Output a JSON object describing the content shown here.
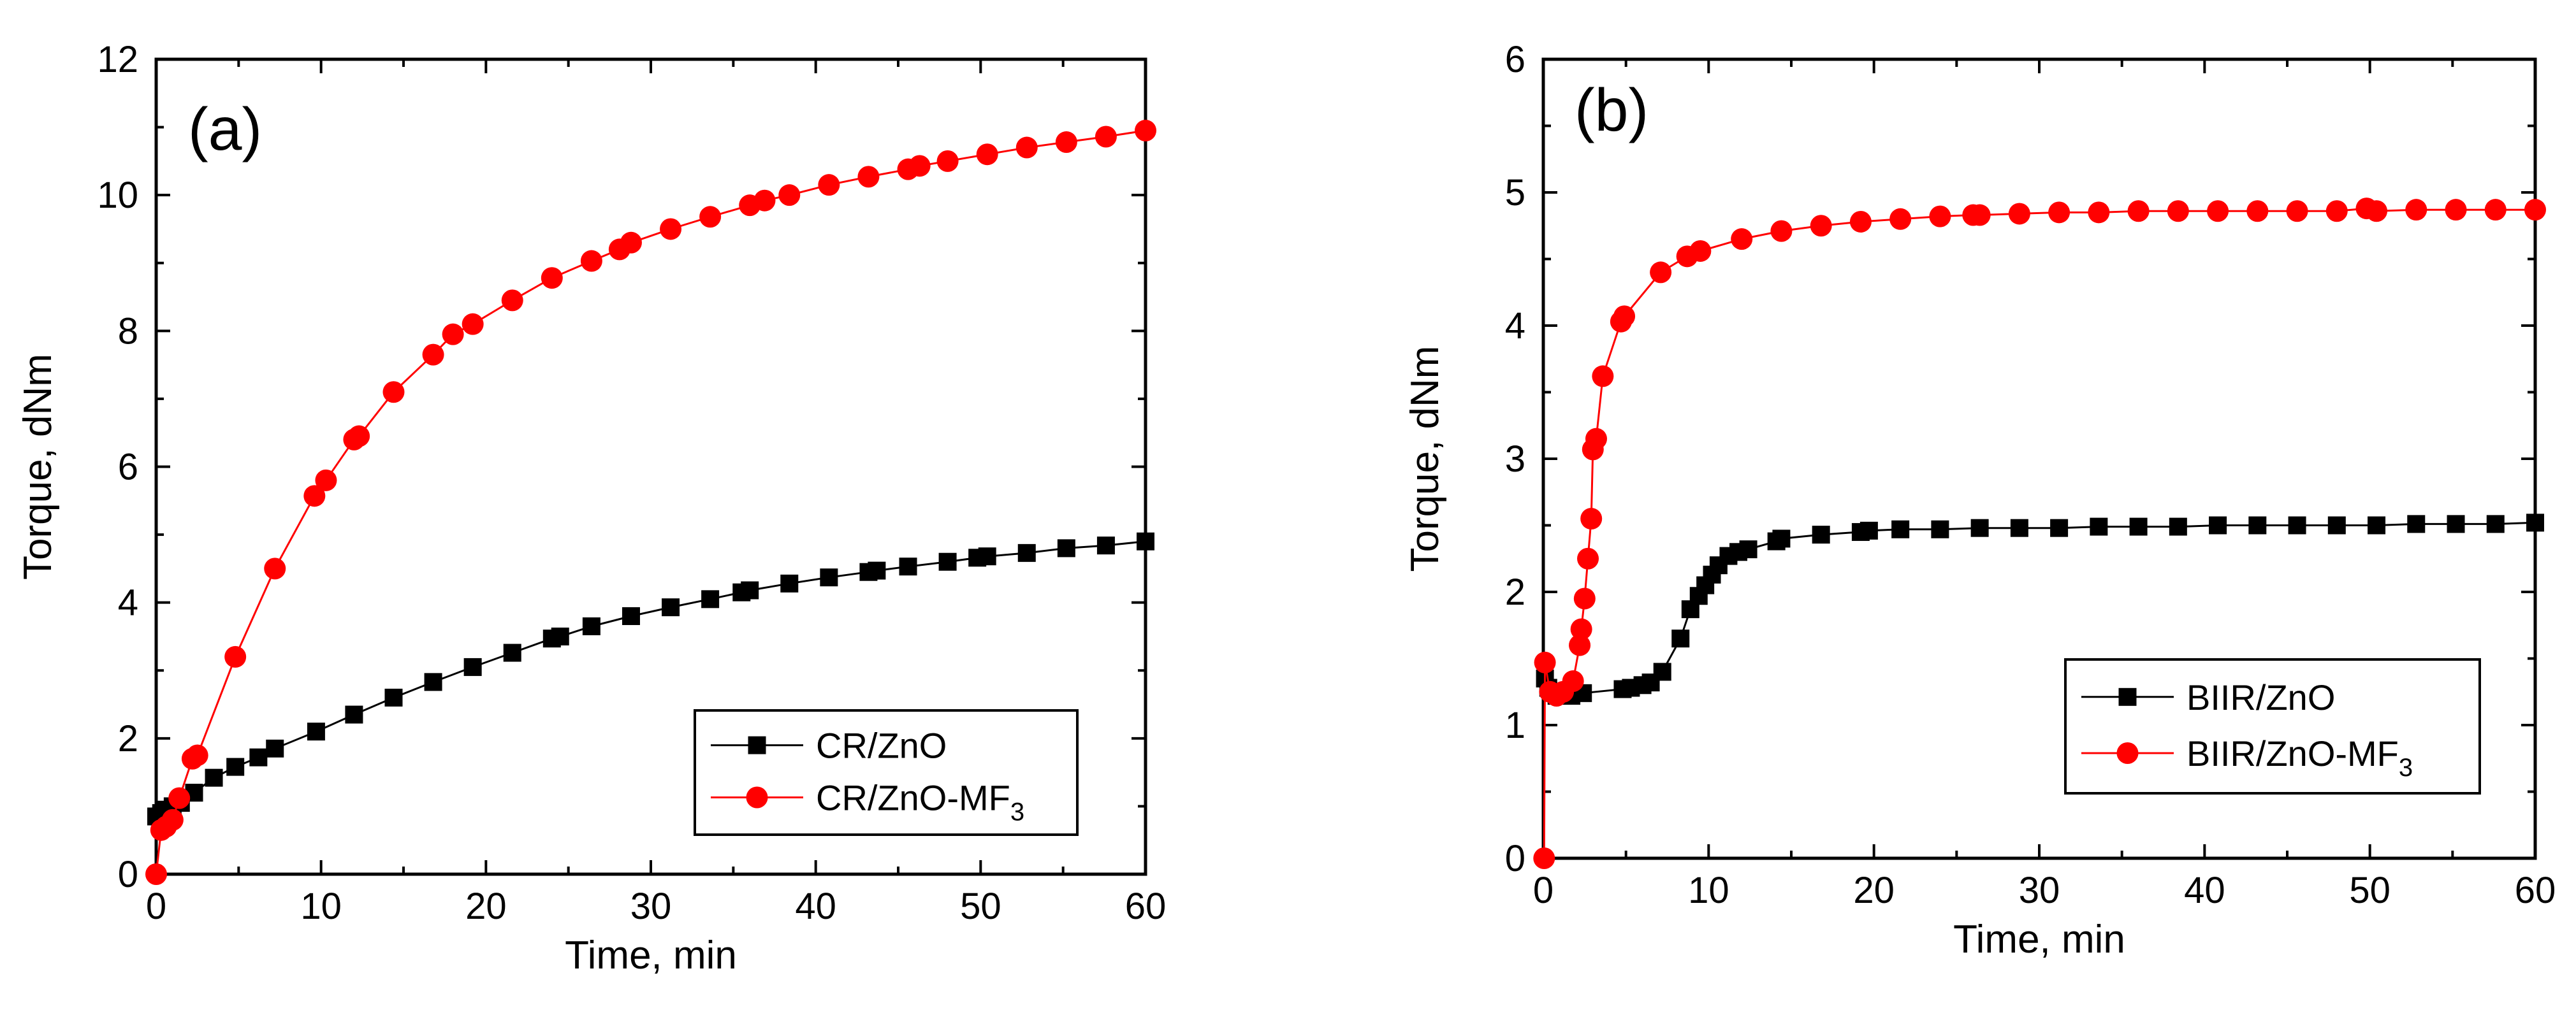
{
  "colors": {
    "black_series": "#000000",
    "red_series": "#ff0000",
    "axis": "#000000"
  },
  "chart_data": [
    {
      "panel_label": "(a)",
      "type": "line",
      "xlabel": "Time, min",
      "ylabel": "Torque, dNm",
      "xlim": [
        0,
        60
      ],
      "ylim": [
        0,
        12
      ],
      "xticks": [
        "0",
        "10",
        "20",
        "30",
        "40",
        "50",
        "60"
      ],
      "yticks": [
        "0",
        "2",
        "4",
        "6",
        "8",
        "10",
        "12"
      ],
      "legend_position": "bottom-right",
      "series": [
        {
          "name": "CR/ZnO",
          "marker": "square",
          "color": "#000000",
          "x": [
            0,
            0.3,
            0.6,
            1.0,
            1.5,
            2.3,
            3.5,
            4.8,
            6.2,
            7.2,
            9.7,
            12.0,
            14.4,
            16.8,
            19.2,
            21.6,
            24.0,
            24.5,
            26.4,
            28.8,
            31.2,
            33.6,
            35.5,
            36.0,
            38.4,
            40.8,
            43.2,
            43.7,
            45.6,
            48.0,
            49.8,
            50.4,
            52.8,
            55.2,
            57.6,
            60.0
          ],
          "y": [
            0.85,
            0.9,
            0.95,
            1.0,
            1.05,
            1.2,
            1.42,
            1.58,
            1.72,
            1.85,
            2.1,
            2.35,
            2.6,
            2.83,
            3.05,
            3.26,
            3.47,
            3.5,
            3.65,
            3.8,
            3.93,
            4.05,
            4.15,
            4.18,
            4.28,
            4.37,
            4.45,
            4.47,
            4.53,
            4.6,
            4.66,
            4.68,
            4.73,
            4.8,
            4.84,
            4.9
          ]
        },
        {
          "name": "CR/ZnO-MF3",
          "legend_base": "CR/ZnO-MF",
          "legend_subscript": "3",
          "marker": "circle",
          "color": "#ff0000",
          "x": [
            0,
            0.3,
            0.6,
            1.0,
            1.4,
            2.2,
            2.5,
            4.8,
            7.2,
            9.6,
            10.3,
            12.0,
            12.3,
            14.4,
            16.8,
            18.0,
            19.2,
            21.6,
            24.0,
            26.4,
            28.1,
            28.8,
            31.2,
            33.6,
            36.0,
            36.9,
            38.4,
            40.8,
            43.2,
            45.6,
            46.3,
            48.0,
            50.4,
            52.8,
            55.2,
            57.6,
            60.0
          ],
          "y": [
            0.0,
            0.65,
            0.7,
            0.8,
            1.12,
            1.7,
            1.75,
            3.2,
            4.5,
            5.57,
            5.8,
            6.4,
            6.45,
            7.1,
            7.65,
            7.95,
            8.1,
            8.45,
            8.78,
            9.03,
            9.2,
            9.3,
            9.5,
            9.68,
            9.85,
            9.92,
            10.0,
            10.15,
            10.27,
            10.38,
            10.43,
            10.5,
            10.6,
            10.7,
            10.78,
            10.86,
            10.95
          ]
        }
      ]
    },
    {
      "panel_label": "(b)",
      "type": "line",
      "xlabel": "Time, min",
      "ylabel": "Torque, dNm",
      "xlim": [
        0,
        60
      ],
      "ylim": [
        0,
        6
      ],
      "xticks": [
        "0",
        "10",
        "20",
        "30",
        "40",
        "50",
        "60"
      ],
      "yticks": [
        "0",
        "1",
        "2",
        "3",
        "4",
        "5",
        "6"
      ],
      "legend_position": "right-middle",
      "series": [
        {
          "name": "BIIR/ZnO",
          "marker": "square",
          "color": "#000000",
          "x": [
            0.1,
            0.3,
            0.5,
            0.8,
            1.2,
            1.7,
            2.4,
            4.8,
            5.3,
            6.0,
            6.5,
            7.2,
            8.3,
            8.9,
            9.4,
            9.8,
            10.2,
            10.6,
            11.2,
            11.8,
            12.4,
            14.1,
            14.4,
            16.8,
            19.2,
            19.7,
            21.6,
            24.0,
            26.4,
            28.8,
            31.2,
            33.6,
            36.0,
            38.4,
            40.8,
            43.2,
            45.6,
            48.0,
            50.4,
            52.8,
            55.2,
            57.6,
            60.0
          ],
          "y": [
            1.35,
            1.28,
            1.25,
            1.22,
            1.22,
            1.22,
            1.24,
            1.27,
            1.28,
            1.3,
            1.32,
            1.4,
            1.65,
            1.87,
            1.97,
            2.05,
            2.13,
            2.2,
            2.27,
            2.3,
            2.32,
            2.38,
            2.4,
            2.43,
            2.45,
            2.46,
            2.47,
            2.47,
            2.48,
            2.48,
            2.48,
            2.49,
            2.49,
            2.49,
            2.5,
            2.5,
            2.5,
            2.5,
            2.5,
            2.51,
            2.51,
            2.51,
            2.52
          ]
        },
        {
          "name": "BIIR/ZnO-MF3",
          "legend_base": "BIIR/ZnO-MF",
          "legend_subscript": "3",
          "marker": "circle",
          "color": "#ff0000",
          "x": [
            0.05,
            0.1,
            0.4,
            0.8,
            1.2,
            1.8,
            2.2,
            2.3,
            2.5,
            2.7,
            2.9,
            3.0,
            3.2,
            3.6,
            4.7,
            4.9,
            7.1,
            8.7,
            9.5,
            12.0,
            14.4,
            16.8,
            19.2,
            21.6,
            24.0,
            26.0,
            26.4,
            28.8,
            31.2,
            33.6,
            36.0,
            38.4,
            40.8,
            43.2,
            45.6,
            48.0,
            49.8,
            50.4,
            52.8,
            55.2,
            57.6,
            60.0
          ],
          "y": [
            0.0,
            1.47,
            1.25,
            1.22,
            1.25,
            1.33,
            1.6,
            1.72,
            1.95,
            2.25,
            2.55,
            3.07,
            3.15,
            3.62,
            4.03,
            4.07,
            4.4,
            4.52,
            4.56,
            4.65,
            4.71,
            4.75,
            4.78,
            4.8,
            4.82,
            4.83,
            4.83,
            4.84,
            4.85,
            4.85,
            4.86,
            4.86,
            4.86,
            4.86,
            4.86,
            4.86,
            4.88,
            4.86,
            4.87,
            4.87,
            4.87,
            4.87
          ]
        }
      ]
    }
  ]
}
